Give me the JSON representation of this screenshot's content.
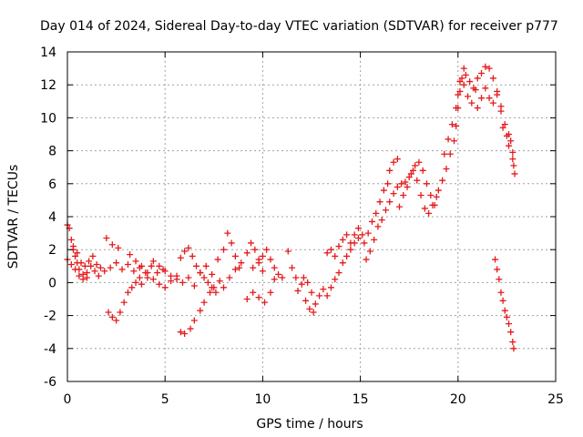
{
  "chart_data": {
    "type": "scatter",
    "title": "Day 014 of 2024, Sidereal Day-to-day VTEC variation (SDTVAR) for receiver p777",
    "xlabel": "GPS time / hours",
    "ylabel": "SDTVAR / TECUs",
    "xlim": [
      0,
      25
    ],
    "ylim": [
      -6,
      14
    ],
    "xticks": [
      0,
      5,
      10,
      15,
      20,
      25
    ],
    "yticks": [
      -6,
      -4,
      -2,
      0,
      2,
      4,
      6,
      8,
      10,
      12,
      14
    ],
    "grid": true,
    "marker": "plus",
    "series": [
      {
        "name": "SDTVAR",
        "color": "#e41a1c",
        "points": [
          [
            0.0,
            3.5
          ],
          [
            0.1,
            3.3
          ],
          [
            0.2,
            2.6
          ],
          [
            0.3,
            2.0
          ],
          [
            0.4,
            1.6
          ],
          [
            0.5,
            1.2
          ],
          [
            0.6,
            0.8
          ],
          [
            0.8,
            0.5
          ],
          [
            1.0,
            0.3
          ],
          [
            0.0,
            1.4
          ],
          [
            0.2,
            1.1
          ],
          [
            0.4,
            0.8
          ],
          [
            0.6,
            0.4
          ],
          [
            0.8,
            0.2
          ],
          [
            1.0,
            0.6
          ],
          [
            1.2,
            1.0
          ],
          [
            1.4,
            0.7
          ],
          [
            1.6,
            0.4
          ],
          [
            0.3,
            2.2
          ],
          [
            0.5,
            1.8
          ],
          [
            0.7,
            1.2
          ],
          [
            0.9,
            1.0
          ],
          [
            1.1,
            1.3
          ],
          [
            1.3,
            1.6
          ],
          [
            1.5,
            1.1
          ],
          [
            1.7,
            0.9
          ],
          [
            1.9,
            0.7
          ],
          [
            2.0,
            2.7
          ],
          [
            2.3,
            2.3
          ],
          [
            2.6,
            2.1
          ],
          [
            2.1,
            -1.8
          ],
          [
            2.3,
            -2.1
          ],
          [
            2.5,
            -2.3
          ],
          [
            2.7,
            -1.8
          ],
          [
            2.9,
            -1.2
          ],
          [
            3.1,
            -0.6
          ],
          [
            3.3,
            -0.3
          ],
          [
            3.5,
            0.0
          ],
          [
            3.7,
            0.3
          ],
          [
            2.2,
            0.9
          ],
          [
            2.5,
            1.2
          ],
          [
            2.8,
            0.8
          ],
          [
            3.1,
            1.1
          ],
          [
            3.4,
            0.7
          ],
          [
            3.7,
            0.9
          ],
          [
            4.0,
            0.6
          ],
          [
            4.3,
            1.0
          ],
          [
            4.6,
            0.6
          ],
          [
            4.9,
            0.8
          ],
          [
            3.2,
            1.7
          ],
          [
            3.5,
            1.3
          ],
          [
            3.8,
            1.0
          ],
          [
            4.1,
            0.6
          ],
          [
            4.4,
            0.2
          ],
          [
            4.7,
            -0.1
          ],
          [
            5.0,
            -0.3
          ],
          [
            5.3,
            0.1
          ],
          [
            5.6,
            0.4
          ],
          [
            3.8,
            -0.1
          ],
          [
            4.1,
            0.3
          ],
          [
            4.4,
            1.3
          ],
          [
            4.7,
            1.0
          ],
          [
            5.0,
            0.7
          ],
          [
            5.3,
            0.4
          ],
          [
            5.6,
            0.2
          ],
          [
            5.9,
            0.0
          ],
          [
            6.2,
            0.3
          ],
          [
            5.8,
            -3.0
          ],
          [
            6.0,
            -3.1
          ],
          [
            6.3,
            -2.8
          ],
          [
            6.5,
            -2.3
          ],
          [
            6.8,
            -1.7
          ],
          [
            7.0,
            -1.2
          ],
          [
            7.3,
            -0.6
          ],
          [
            7.5,
            -0.3
          ],
          [
            7.8,
            0.1
          ],
          [
            5.8,
            1.5
          ],
          [
            6.0,
            1.9
          ],
          [
            6.2,
            2.1
          ],
          [
            6.4,
            1.6
          ],
          [
            6.6,
            1.0
          ],
          [
            6.8,
            0.6
          ],
          [
            7.0,
            0.3
          ],
          [
            7.2,
            0.0
          ],
          [
            7.4,
            -0.3
          ],
          [
            7.6,
            -0.6
          ],
          [
            6.5,
            -0.2
          ],
          [
            6.8,
            0.6
          ],
          [
            7.1,
            1.0
          ],
          [
            7.4,
            0.5
          ],
          [
            7.7,
            1.4
          ],
          [
            8.0,
            2.0
          ],
          [
            8.2,
            3.0
          ],
          [
            8.4,
            2.4
          ],
          [
            8.6,
            1.6
          ],
          [
            8.8,
            0.9
          ],
          [
            8.0,
            -0.3
          ],
          [
            8.3,
            0.3
          ],
          [
            8.6,
            0.8
          ],
          [
            8.9,
            1.2
          ],
          [
            9.2,
            1.8
          ],
          [
            9.4,
            2.4
          ],
          [
            9.6,
            2.0
          ],
          [
            9.8,
            1.4
          ],
          [
            10.0,
            0.7
          ],
          [
            9.2,
            -1.0
          ],
          [
            9.5,
            -0.6
          ],
          [
            9.8,
            -0.9
          ],
          [
            10.1,
            -1.2
          ],
          [
            10.4,
            -0.6
          ],
          [
            10.6,
            0.2
          ],
          [
            9.5,
            0.9
          ],
          [
            9.8,
            1.2
          ],
          [
            10.0,
            1.6
          ],
          [
            10.2,
            2.0
          ],
          [
            10.4,
            1.4
          ],
          [
            10.6,
            0.9
          ],
          [
            10.8,
            0.5
          ],
          [
            11.0,
            0.3
          ],
          [
            11.3,
            1.9
          ],
          [
            11.5,
            0.9
          ],
          [
            11.7,
            0.3
          ],
          [
            11.8,
            -0.5
          ],
          [
            12.0,
            -0.1
          ],
          [
            12.2,
            -1.1
          ],
          [
            12.4,
            -1.6
          ],
          [
            12.6,
            -1.8
          ],
          [
            12.1,
            0.3
          ],
          [
            12.3,
            0.0
          ],
          [
            12.5,
            -0.6
          ],
          [
            12.7,
            -1.3
          ],
          [
            12.9,
            -0.8
          ],
          [
            13.1,
            -0.4
          ],
          [
            13.3,
            -0.8
          ],
          [
            13.5,
            -0.3
          ],
          [
            13.7,
            0.2
          ],
          [
            13.9,
            0.6
          ],
          [
            14.1,
            1.2
          ],
          [
            14.3,
            1.6
          ],
          [
            14.5,
            2.0
          ],
          [
            14.7,
            2.4
          ],
          [
            14.9,
            2.7
          ],
          [
            13.3,
            1.8
          ],
          [
            13.5,
            2.0
          ],
          [
            13.7,
            1.6
          ],
          [
            13.9,
            2.2
          ],
          [
            14.1,
            2.6
          ],
          [
            14.3,
            2.9
          ],
          [
            14.5,
            2.4
          ],
          [
            14.7,
            2.9
          ],
          [
            14.9,
            3.3
          ],
          [
            15.1,
            2.9
          ],
          [
            15.2,
            2.4
          ],
          [
            15.4,
            3.0
          ],
          [
            15.6,
            3.7
          ],
          [
            15.8,
            4.2
          ],
          [
            16.0,
            4.9
          ],
          [
            16.2,
            5.6
          ],
          [
            16.4,
            6.0
          ],
          [
            16.5,
            6.8
          ],
          [
            16.7,
            7.3
          ],
          [
            16.9,
            7.5
          ],
          [
            15.3,
            1.4
          ],
          [
            15.5,
            1.9
          ],
          [
            15.7,
            2.6
          ],
          [
            15.9,
            3.4
          ],
          [
            16.1,
            3.8
          ],
          [
            16.3,
            4.4
          ],
          [
            16.5,
            4.9
          ],
          [
            16.7,
            5.4
          ],
          [
            16.9,
            5.8
          ],
          [
            17.1,
            6.0
          ],
          [
            17.0,
            4.6
          ],
          [
            17.2,
            5.3
          ],
          [
            17.4,
            5.8
          ],
          [
            17.6,
            6.6
          ],
          [
            17.8,
            7.1
          ],
          [
            18.0,
            7.3
          ],
          [
            18.2,
            6.8
          ],
          [
            18.4,
            6.0
          ],
          [
            18.6,
            5.3
          ],
          [
            18.8,
            4.7
          ],
          [
            17.3,
            6.1
          ],
          [
            17.5,
            6.4
          ],
          [
            17.7,
            6.8
          ],
          [
            17.9,
            6.2
          ],
          [
            18.1,
            5.3
          ],
          [
            18.3,
            4.5
          ],
          [
            18.5,
            4.2
          ],
          [
            18.7,
            4.7
          ],
          [
            18.9,
            5.2
          ],
          [
            19.0,
            5.6
          ],
          [
            19.2,
            6.2
          ],
          [
            19.4,
            6.9
          ],
          [
            19.6,
            7.8
          ],
          [
            19.8,
            8.6
          ],
          [
            19.9,
            9.5
          ],
          [
            20.0,
            10.6
          ],
          [
            20.1,
            11.6
          ],
          [
            20.2,
            12.4
          ],
          [
            20.3,
            13.0
          ],
          [
            19.3,
            7.8
          ],
          [
            19.5,
            8.7
          ],
          [
            19.7,
            9.6
          ],
          [
            19.9,
            10.6
          ],
          [
            20.0,
            11.4
          ],
          [
            20.1,
            12.2
          ],
          [
            20.3,
            12.0
          ],
          [
            20.5,
            11.3
          ],
          [
            20.7,
            10.9
          ],
          [
            20.9,
            11.7
          ],
          [
            20.4,
            12.6
          ],
          [
            20.6,
            12.2
          ],
          [
            20.8,
            11.8
          ],
          [
            21.0,
            12.4
          ],
          [
            21.2,
            12.7
          ],
          [
            21.4,
            13.1
          ],
          [
            21.6,
            13.0
          ],
          [
            21.8,
            12.4
          ],
          [
            22.0,
            11.6
          ],
          [
            22.2,
            10.7
          ],
          [
            21.0,
            10.6
          ],
          [
            21.2,
            11.2
          ],
          [
            21.4,
            11.8
          ],
          [
            21.6,
            11.2
          ],
          [
            21.8,
            10.9
          ],
          [
            22.0,
            11.4
          ],
          [
            22.2,
            10.4
          ],
          [
            22.4,
            9.6
          ],
          [
            22.6,
            9.0
          ],
          [
            22.8,
            7.5
          ],
          [
            22.3,
            9.4
          ],
          [
            22.5,
            8.9
          ],
          [
            22.6,
            8.3
          ],
          [
            22.7,
            8.6
          ],
          [
            22.8,
            7.9
          ],
          [
            22.85,
            7.1
          ],
          [
            22.9,
            6.6
          ],
          [
            21.9,
            1.4
          ],
          [
            22.0,
            0.8
          ],
          [
            22.1,
            0.2
          ],
          [
            22.2,
            -0.6
          ],
          [
            22.3,
            -1.1
          ],
          [
            22.4,
            -1.7
          ],
          [
            22.5,
            -2.1
          ],
          [
            22.6,
            -2.5
          ],
          [
            22.7,
            -3.0
          ],
          [
            22.8,
            -3.6
          ],
          [
            22.85,
            -4.0
          ]
        ]
      }
    ]
  }
}
